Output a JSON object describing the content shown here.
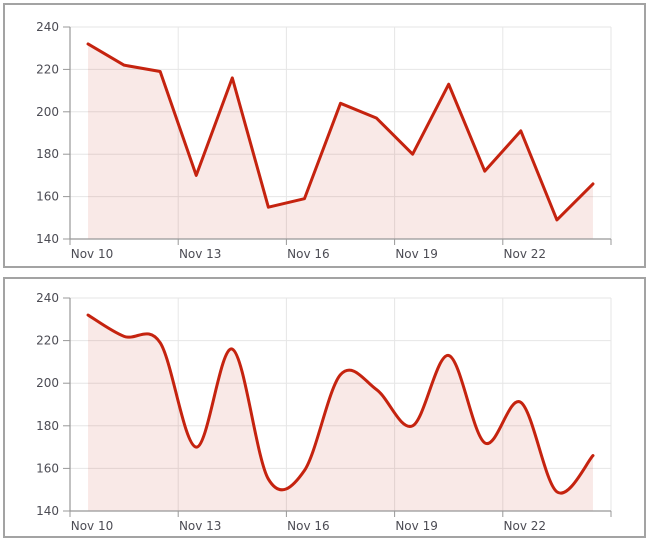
{
  "style": {
    "line_color": "#c5230f",
    "fill_color": "rgba(197,35,15,0.10)",
    "grid_color": "#e6e6e6",
    "axis_color": "#989898",
    "tick_color": "#989898",
    "label_color": "#4c4c54",
    "panel_border_color": "#a3a3a3",
    "background": "#ffffff"
  },
  "chart_data": [
    {
      "type": "area",
      "curve": "linear",
      "title": "",
      "xlabel": "",
      "ylabel": "",
      "x": [
        "Nov 10",
        "Nov 11",
        "Nov 12",
        "Nov 13",
        "Nov 14",
        "Nov 15",
        "Nov 16",
        "Nov 17",
        "Nov 18",
        "Nov 19",
        "Nov 20",
        "Nov 21",
        "Nov 22",
        "Nov 23",
        "Nov 24"
      ],
      "values": [
        232,
        222,
        219,
        170,
        216,
        155,
        159,
        204,
        197,
        180,
        213,
        172,
        191,
        149,
        166
      ],
      "ylim": [
        140,
        240
      ],
      "y_ticks": [
        140,
        160,
        180,
        200,
        220,
        240
      ],
      "x_tick_every": 3,
      "x_tick_labels": [
        "Nov 10",
        "Nov 13",
        "Nov 16",
        "Nov 19",
        "Nov 22"
      ],
      "grid": true,
      "legend": false
    },
    {
      "type": "area",
      "curve": "spline",
      "title": "",
      "xlabel": "",
      "ylabel": "",
      "x": [
        "Nov 10",
        "Nov 11",
        "Nov 12",
        "Nov 13",
        "Nov 14",
        "Nov 15",
        "Nov 16",
        "Nov 17",
        "Nov 18",
        "Nov 19",
        "Nov 20",
        "Nov 21",
        "Nov 22",
        "Nov 23",
        "Nov 24"
      ],
      "values": [
        232,
        222,
        219,
        170,
        216,
        155,
        159,
        204,
        197,
        180,
        213,
        172,
        191,
        149,
        166
      ],
      "ylim": [
        140,
        240
      ],
      "y_ticks": [
        140,
        160,
        180,
        200,
        220,
        240
      ],
      "x_tick_every": 3,
      "x_tick_labels": [
        "Nov 10",
        "Nov 13",
        "Nov 16",
        "Nov 19",
        "Nov 22"
      ],
      "grid": true,
      "legend": false
    }
  ]
}
